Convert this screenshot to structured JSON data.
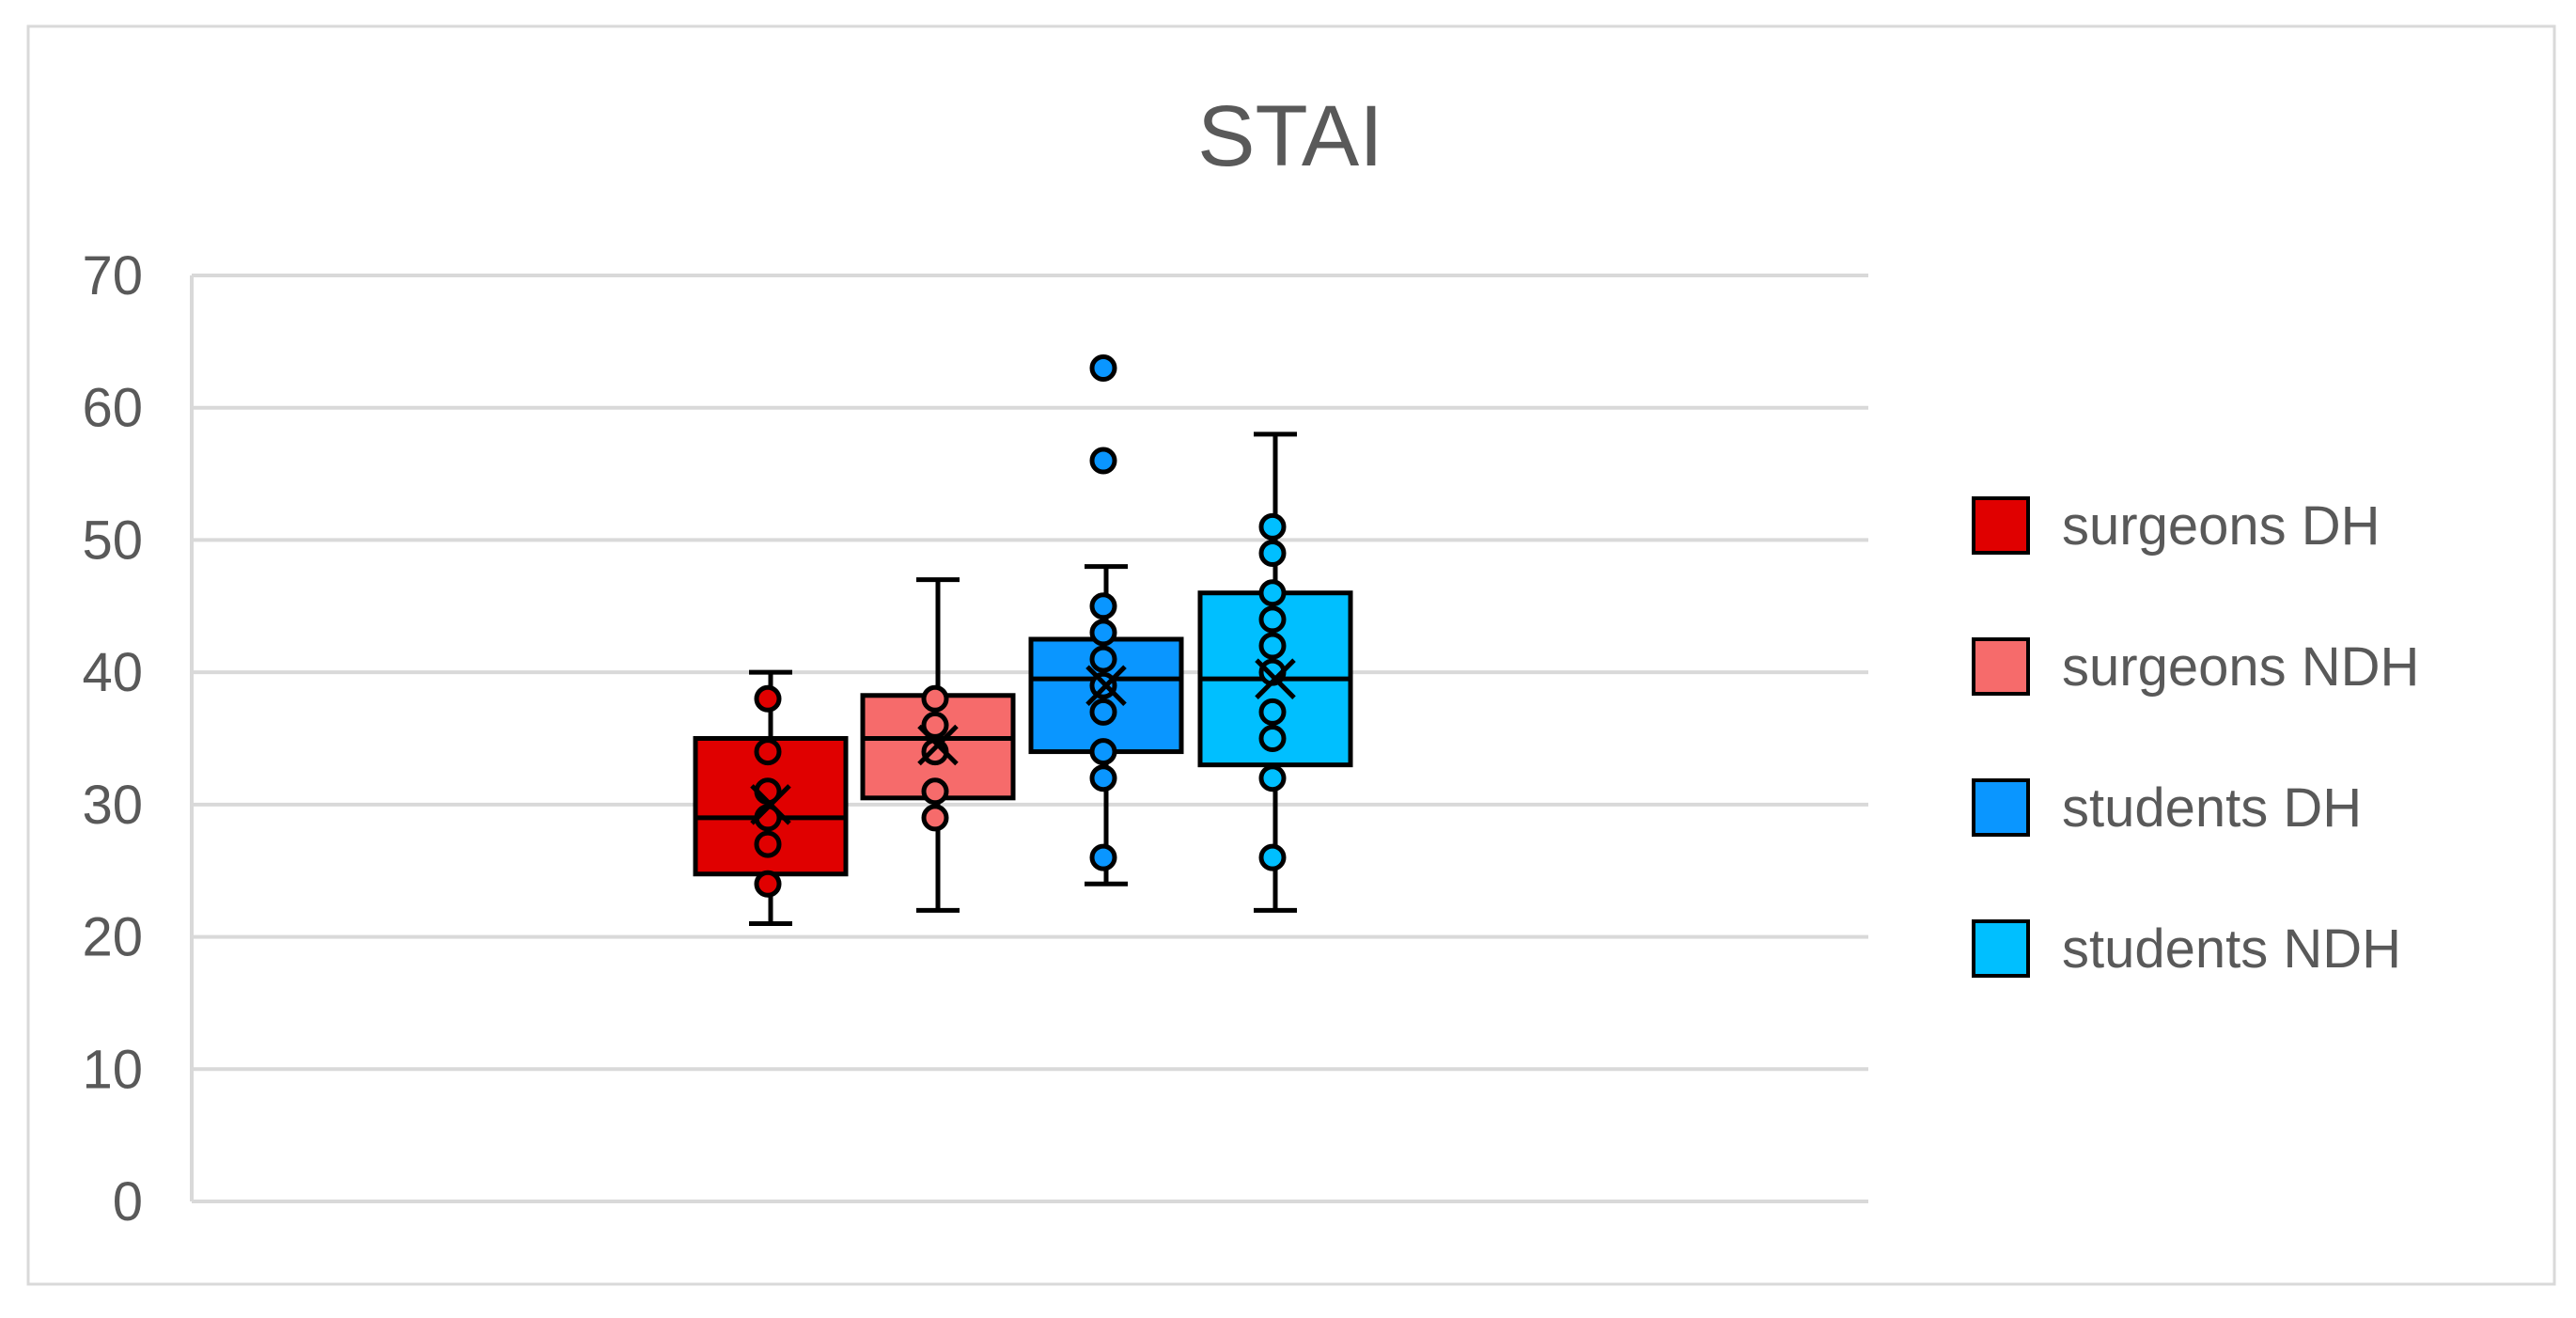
{
  "chart_data": {
    "type": "boxplot",
    "title": "STAI",
    "xlabel": "",
    "ylabel": "",
    "ylim": [
      0,
      70
    ],
    "yticks": [
      0,
      10,
      20,
      30,
      40,
      50,
      60,
      70
    ],
    "grid": true,
    "legend_position": "right",
    "series": [
      {
        "name": "surgeons DH",
        "color": "#e00000",
        "min": 21,
        "q1": 24.75,
        "median": 29,
        "q3": 35,
        "max": 40,
        "mean": 30,
        "points": [
          24,
          27,
          29,
          31,
          34,
          38
        ]
      },
      {
        "name": "surgeons NDH",
        "color": "#f66b6b",
        "min": 22,
        "q1": 30.5,
        "median": 35,
        "q3": 38.25,
        "max": 47,
        "mean": 34.5,
        "points": [
          29,
          31,
          34,
          36,
          38
        ]
      },
      {
        "name": "students DH",
        "color": "#0a96ff",
        "min": 24,
        "q1": 34,
        "median": 39.5,
        "q3": 42.5,
        "max": 48,
        "mean": 39,
        "points": [
          26,
          32,
          34,
          37,
          39,
          41,
          43,
          45,
          56,
          63
        ]
      },
      {
        "name": "students NDH",
        "color": "#00bfff",
        "min": 22,
        "q1": 33,
        "median": 39.5,
        "q3": 46,
        "max": 58,
        "mean": 39.5,
        "points": [
          26,
          32,
          35,
          37,
          40,
          42,
          44,
          46,
          49,
          51
        ]
      }
    ]
  }
}
